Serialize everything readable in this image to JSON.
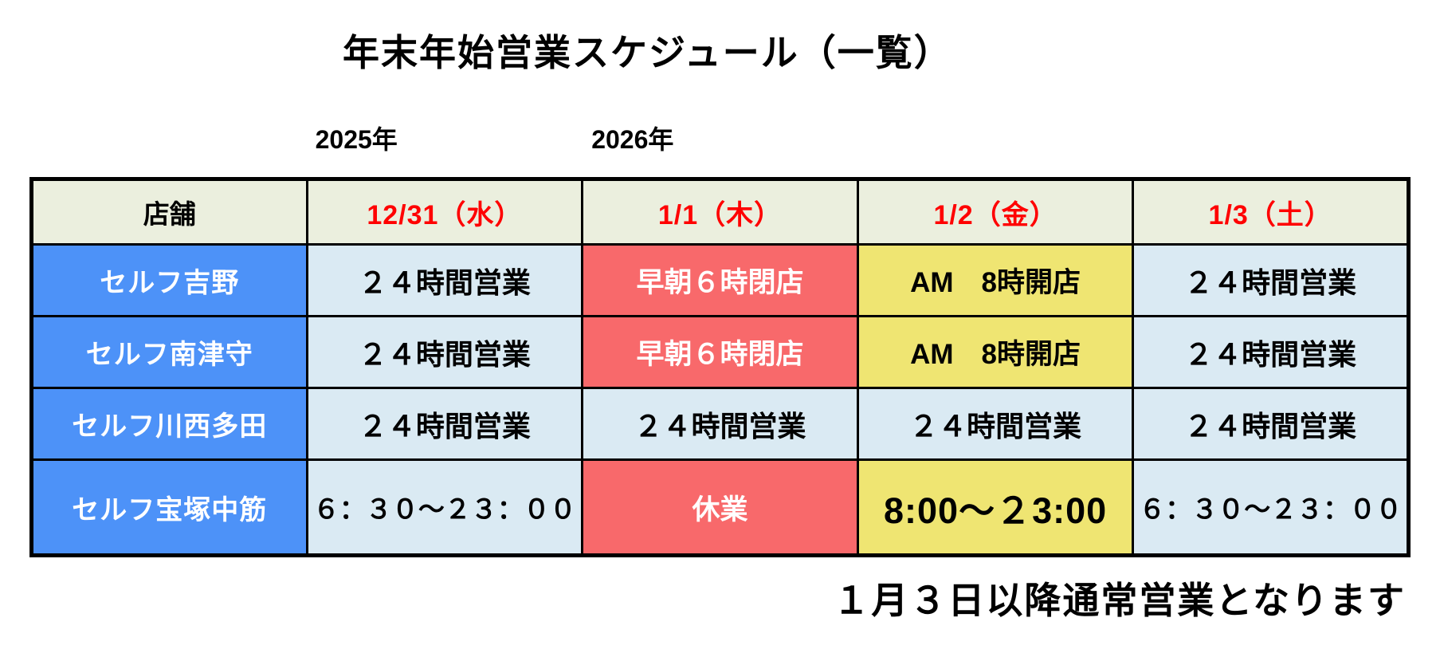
{
  "title": "年末年始営業スケジュール（一覧）",
  "year_labels": {
    "left": "2025年",
    "right": "2026年"
  },
  "footer_note": "１月３日以降通常営業となります",
  "colors": {
    "store_blue": "#4D92F8",
    "open_light_blue": "#DAEAF3",
    "closed_red": "#F8696B",
    "limited_yellow": "#EFE572",
    "header_cream": "#EBEFDE",
    "header_date_red": "#FF0000",
    "border_black": "#000000"
  },
  "table": {
    "headers": [
      "店舗",
      "12/31（水）",
      "1/1（木）",
      "1/2（金）",
      "1/3（土）"
    ],
    "rows": [
      {
        "store": "セルフ吉野",
        "cells": [
          {
            "text": "２４時間営業",
            "type": "open24"
          },
          {
            "text": "早朝６時閉店",
            "type": "closed-early"
          },
          {
            "text": "AM　8時開店",
            "type": "late-open"
          },
          {
            "text": "２４時間営業",
            "type": "open24"
          }
        ]
      },
      {
        "store": "セルフ南津守",
        "cells": [
          {
            "text": "２４時間営業",
            "type": "open24"
          },
          {
            "text": "早朝６時閉店",
            "type": "closed-early"
          },
          {
            "text": "AM　8時開店",
            "type": "late-open"
          },
          {
            "text": "２４時間営業",
            "type": "open24"
          }
        ]
      },
      {
        "store": "セルフ川西多田",
        "cells": [
          {
            "text": "２４時間営業",
            "type": "open24"
          },
          {
            "text": "２４時間営業",
            "type": "open24"
          },
          {
            "text": "２４時間営業",
            "type": "open24"
          },
          {
            "text": "２４時間営業",
            "type": "open24"
          }
        ]
      },
      {
        "store": "セルフ宝塚中筋",
        "cells": [
          {
            "text": "６：３０～２３：００",
            "type": "short-hours"
          },
          {
            "text": "休業",
            "type": "closed"
          },
          {
            "text": "8:00～２3:00",
            "type": "limited-hours"
          },
          {
            "text": "６：３０～２３：００",
            "type": "short-hours"
          }
        ]
      }
    ]
  }
}
